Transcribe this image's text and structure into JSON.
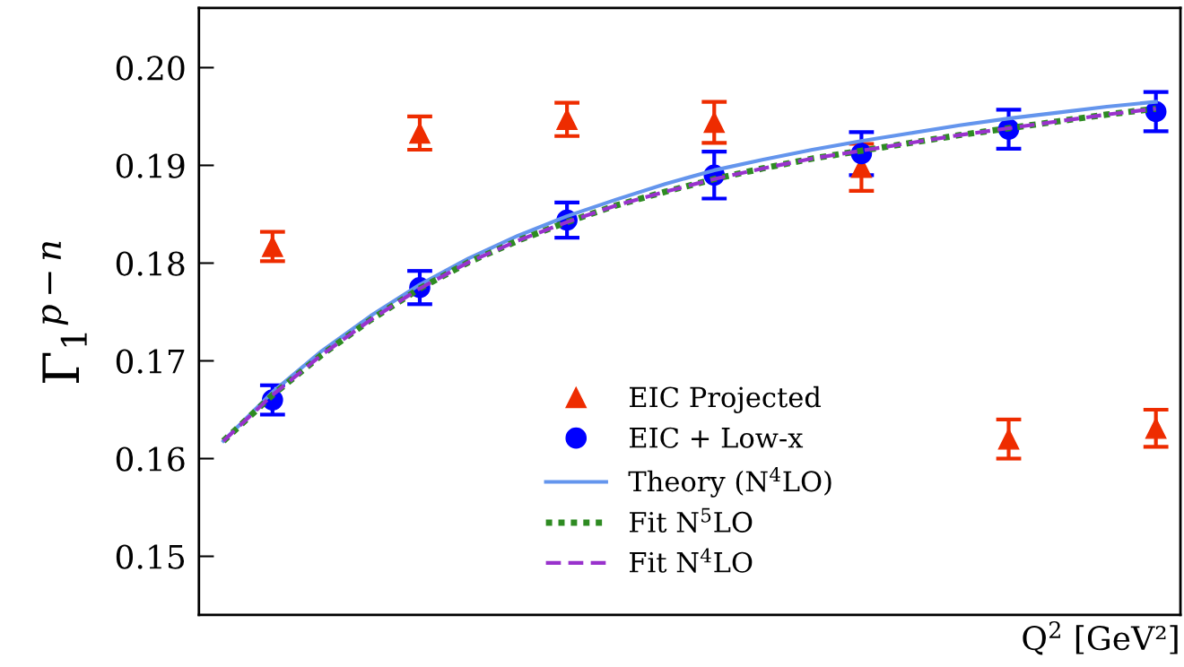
{
  "chart_data": {
    "type": "scatter",
    "ylabel": "Γ$_{1}$$^{p−n}$",
    "xlabel": "Q$^{2}$ [GeV²]",
    "categories": [
      null,
      null,
      null,
      null,
      null,
      null,
      null,
      null,
      null,
      null,
      null,
      null,
      null,
      null,
      null,
      null,
      null,
      null,
      null,
      null
    ],
    "ylim": [
      0.144,
      0.2061
    ],
    "yticks": [
      {
        "value": 0.15,
        "label": "0.15"
      },
      {
        "value": 0.16,
        "label": "0.16"
      },
      {
        "value": 0.17,
        "label": "0.17"
      },
      {
        "value": 0.18,
        "label": "0.18"
      },
      {
        "value": 0.19,
        "label": "0.19"
      },
      {
        "value": 0.2,
        "label": "0.20"
      }
    ],
    "tick_labels": "y",
    "legend": "bottom",
    "grid": false,
    "series": [
      {
        "name": "EIC Projected",
        "marker": "triangle",
        "color": "#ee2c00",
        "values": [
          null,
          0.1817,
          null,
          null,
          0.1933,
          null,
          null,
          0.1947,
          null,
          null,
          0.1944,
          null,
          null,
          0.1898,
          null,
          null,
          0.162,
          null,
          null,
          0.1631
        ],
        "errors": [
          null,
          0.0015,
          null,
          null,
          0.0017,
          null,
          null,
          0.0017,
          null,
          null,
          0.0021,
          null,
          null,
          0.0024,
          null,
          null,
          0.002,
          null,
          null,
          0.0019
        ]
      },
      {
        "name": "EIC + Low-x",
        "marker": "circle",
        "color": "#0000ff",
        "values": [
          null,
          0.166,
          null,
          null,
          0.1775,
          null,
          null,
          0.1844,
          null,
          null,
          0.189,
          null,
          null,
          0.1912,
          null,
          null,
          0.1937,
          null,
          null,
          0.1955
        ],
        "errors": [
          null,
          0.0015,
          null,
          null,
          0.0017,
          null,
          null,
          0.0018,
          null,
          null,
          0.0024,
          null,
          null,
          0.0022,
          null,
          null,
          0.002,
          null,
          null,
          0.002
        ]
      },
      {
        "name": "Theory (N$^{4}$LO)",
        "type": "line",
        "line_style": "solid",
        "color": "#6495ed",
        "values": [
          0.1618,
          0.1668,
          0.171,
          0.1746,
          0.1778,
          0.1805,
          0.1828,
          0.1848,
          0.1865,
          0.1881,
          0.1895,
          0.1906,
          0.1916,
          0.1925,
          0.1933,
          0.1941,
          0.1948,
          0.1954,
          0.196,
          0.1965
        ]
      },
      {
        "name": "Fit N$^{5}$LO",
        "type": "line",
        "line_style": "dotted",
        "color": "#2e8b22",
        "values": [
          0.1618,
          0.1665,
          0.1706,
          0.1742,
          0.1774,
          0.1801,
          0.1823,
          0.1842,
          0.1859,
          0.1873,
          0.1886,
          0.1897,
          0.1907,
          0.1915,
          0.1923,
          0.1931,
          0.1938,
          0.1945,
          0.1952,
          0.1958
        ]
      },
      {
        "name": "Fit N$^{4}$LO",
        "type": "line",
        "line_style": "dashed",
        "color": "#9932cc",
        "values": [
          0.1618,
          0.1665,
          0.1706,
          0.1742,
          0.1774,
          0.1801,
          0.1823,
          0.1842,
          0.1859,
          0.1873,
          0.1886,
          0.1897,
          0.1907,
          0.1915,
          0.1923,
          0.1931,
          0.1938,
          0.1945,
          0.1952,
          0.1958
        ]
      }
    ]
  }
}
